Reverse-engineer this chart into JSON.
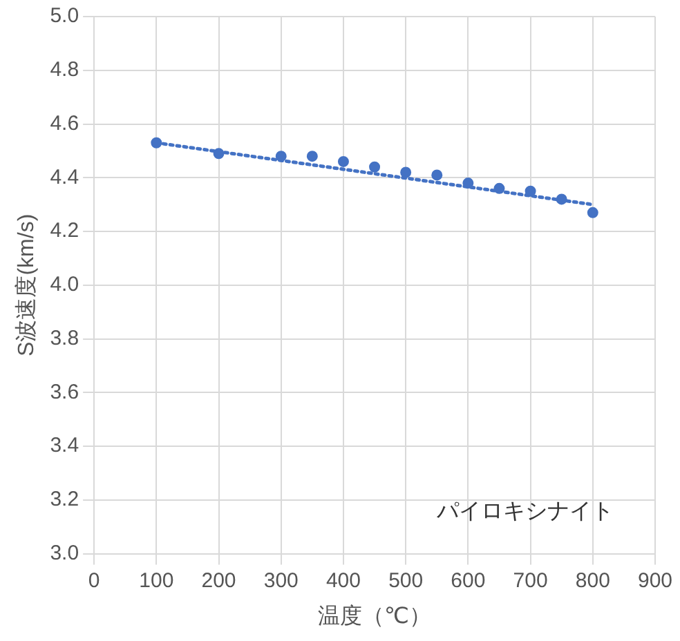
{
  "chart_data": {
    "type": "scatter",
    "xlabel": "温度（℃）",
    "ylabel": "S波速度(km/s)",
    "x": [
      100,
      200,
      300,
      350,
      400,
      450,
      500,
      550,
      600,
      650,
      700,
      750,
      800
    ],
    "series": [
      {
        "color": "#4472c4",
        "values": [
          4.53,
          4.49,
          4.48,
          4.48,
          4.46,
          4.44,
          4.42,
          4.41,
          4.38,
          4.36,
          4.35,
          4.32,
          4.27
        ],
        "marker": "circle"
      },
      {
        "type": "line",
        "color": "#4472c4",
        "x": [
          100,
          800
        ],
        "values": [
          4.53,
          4.3
        ],
        "line_style": "dotted",
        "marker": "none"
      }
    ],
    "xlim": [
      0,
      900
    ],
    "xticks": [
      0,
      100,
      200,
      300,
      400,
      500,
      600,
      700,
      800,
      900
    ],
    "ylim": [
      3.0,
      5.0
    ],
    "yticks": [
      {
        "value": 3.0,
        "label": "3.0"
      },
      {
        "value": 3.2,
        "label": "3.2"
      },
      {
        "value": 3.4,
        "label": "3.4"
      },
      {
        "value": 3.6,
        "label": "3.6"
      },
      {
        "value": 3.8,
        "label": "3.8"
      },
      {
        "value": 4.0,
        "label": "4.0"
      },
      {
        "value": 4.2,
        "label": "4.2"
      },
      {
        "value": 4.4,
        "label": "4.4"
      },
      {
        "value": 4.6,
        "label": "4.6"
      },
      {
        "value": 4.8,
        "label": "4.8"
      },
      {
        "value": 5.0,
        "label": "5.0"
      }
    ],
    "grid": true,
    "legend": false,
    "annotations": [
      "パイロキシナイト"
    ]
  }
}
